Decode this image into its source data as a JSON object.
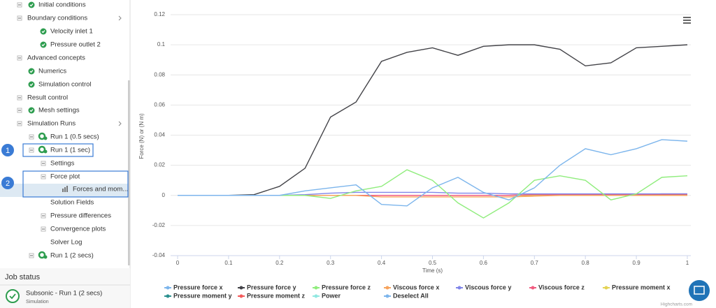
{
  "tree": {
    "items": [
      "Initial conditions",
      "Boundary conditions",
      "Velocity inlet 1",
      "Pressure outlet 2",
      "Advanced concepts",
      "Numerics",
      "Simulation control",
      "Result control",
      "Mesh settings",
      "Simulation Runs",
      "Run 1 (0.5 secs)",
      "Run 1 (1 sec)",
      "Settings",
      "Force plot",
      "Forces and mom...",
      "Solution Fields",
      "Pressure differences",
      "Convergence plots",
      "Solver Log",
      "Run 1 (2 secs)"
    ],
    "badges": [
      "1",
      "2"
    ]
  },
  "job_status": {
    "title": "Job status",
    "job": "Subsonic - Run 1 (2 secs)",
    "kind": "Simulation"
  },
  "chart_data": {
    "type": "line",
    "x_label": "Time (s)",
    "y_label": "Force (N) or (N m)",
    "credit": "Highcharts.com",
    "x": [
      0,
      0.05,
      0.1,
      0.15,
      0.2,
      0.25,
      0.3,
      0.35,
      0.4,
      0.45,
      0.5,
      0.55,
      0.6,
      0.65,
      0.7,
      0.75,
      0.8,
      0.85,
      0.9,
      0.95,
      1
    ],
    "xlim": [
      0,
      1
    ],
    "xticks": [
      0,
      0.1,
      0.2,
      0.3,
      0.4,
      0.5,
      0.6,
      0.7,
      0.8,
      0.9,
      1
    ],
    "ylim": [
      -0.04,
      0.12
    ],
    "yticks": [
      -0.04,
      -0.02,
      0,
      0.02,
      0.04,
      0.06,
      0.08,
      0.1,
      0.12
    ],
    "grid": true,
    "series": [
      {
        "name": "Pressure force x",
        "color": "#7cb5ec",
        "values": [
          0,
          0,
          0,
          0,
          0,
          0.003,
          0.005,
          0.007,
          -0.006,
          -0.007,
          0.005,
          0.012,
          0.002,
          -0.003,
          0.005,
          0.02,
          0.031,
          0.027,
          0.031,
          0.037,
          0.036
        ]
      },
      {
        "name": "Pressure force y",
        "color": "#434348",
        "values": [
          0,
          0,
          0,
          0.0005,
          0.006,
          0.018,
          0.052,
          0.062,
          0.089,
          0.095,
          0.098,
          0.093,
          0.099,
          0.1,
          0.1,
          0.097,
          0.086,
          0.088,
          0.098,
          0.099,
          0.1
        ]
      },
      {
        "name": "Pressure force z",
        "color": "#90ed7d",
        "values": [
          0,
          0,
          0,
          0,
          0,
          0,
          -0.002,
          0.003,
          0.006,
          0.017,
          0.01,
          -0.005,
          -0.015,
          -0.005,
          0.01,
          0.013,
          0.01,
          -0.003,
          0.001,
          0.012,
          0.013
        ]
      },
      {
        "name": "Viscous force x",
        "color": "#f7a35c",
        "values": [
          0,
          0,
          0,
          0,
          0,
          0,
          0,
          0,
          -0.001,
          -0.001,
          -0.001,
          -0.001,
          -0.001,
          -0.001,
          -0.0005,
          0,
          0,
          0,
          0,
          0,
          0
        ]
      },
      {
        "name": "Viscous force y",
        "color": "#8085e9",
        "values": [
          0,
          0,
          0,
          0,
          0,
          0.0005,
          0.0015,
          0.002,
          0.002,
          0.002,
          0.002,
          0.0015,
          0.0015,
          0.001,
          0.001,
          0.001,
          0.001,
          0.001,
          0.001,
          0.001,
          0.001
        ]
      },
      {
        "name": "Viscous force z",
        "color": "#f15c80",
        "values": [
          0,
          0,
          0,
          0,
          0,
          0,
          0,
          0,
          0,
          0,
          0,
          0,
          0,
          0,
          0.0005,
          0.0005,
          0.0005,
          0.0005,
          0.0005,
          0.001,
          0.001
        ]
      },
      {
        "name": "Pressure moment x",
        "color": "#e4d354",
        "values": [
          0,
          0,
          0,
          0,
          0,
          0,
          0,
          0,
          0,
          0,
          0,
          0,
          0,
          0,
          0,
          0,
          0,
          0,
          0,
          0,
          0
        ]
      },
      {
        "name": "Pressure moment y",
        "color": "#2b908f",
        "values": [
          0,
          0,
          0,
          0,
          0,
          0,
          0,
          0,
          0,
          0,
          0,
          0,
          0,
          0,
          0,
          0,
          0,
          0,
          0,
          0,
          0
        ]
      },
      {
        "name": "Pressure moment z",
        "color": "#f45b5b",
        "values": [
          0,
          0,
          0,
          0,
          0,
          0,
          0,
          0,
          0,
          0,
          0,
          0,
          0,
          0,
          0.0005,
          0.0005,
          0.0005,
          0.0005,
          0.0005,
          0.0005,
          0.0005
        ]
      },
      {
        "name": "Power",
        "color": "#91e8e1",
        "values": [
          0,
          0,
          0,
          0,
          0,
          0,
          0,
          0,
          0,
          0,
          0,
          0,
          0,
          0,
          0,
          0,
          0,
          0,
          0,
          0,
          0
        ]
      }
    ],
    "deselect_label": "Deselect All"
  }
}
